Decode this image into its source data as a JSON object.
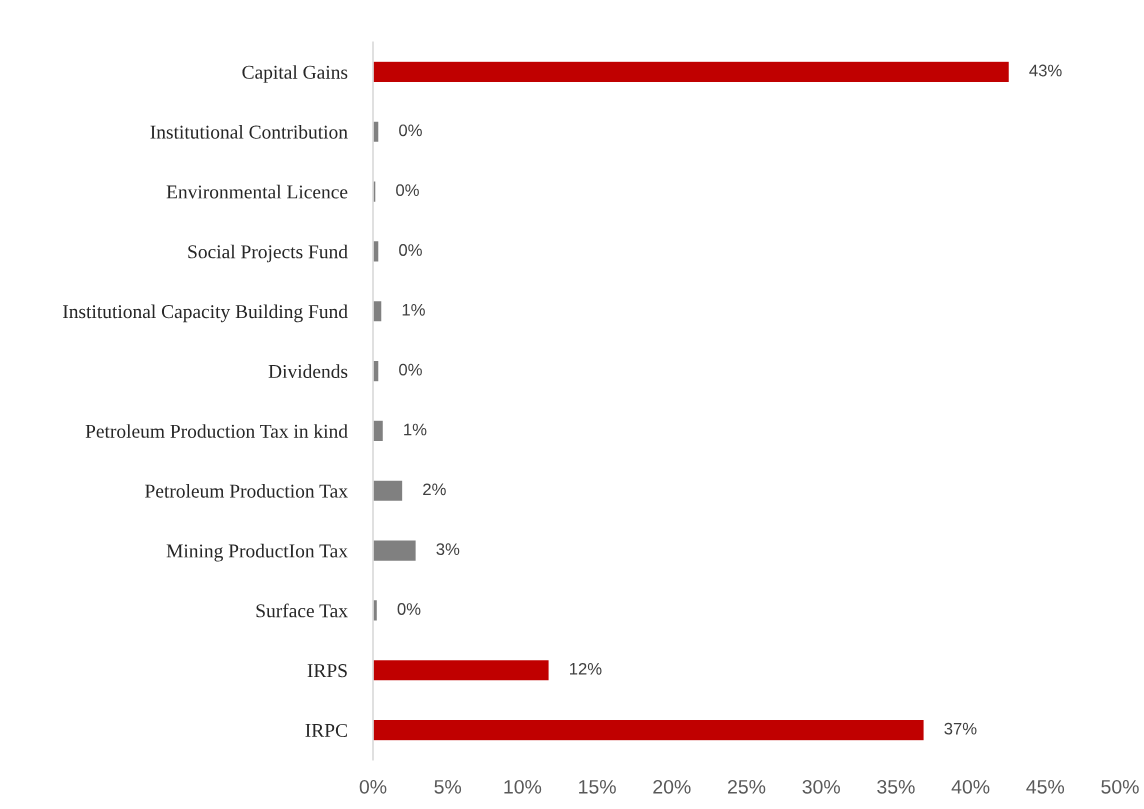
{
  "chart_data": {
    "type": "bar",
    "orientation": "horizontal",
    "categories": [
      "Capital Gains",
      "Institutional Contribution",
      "Environmental Licence",
      "Social Projects Fund",
      "Institutional Capacity Building Fund",
      "Dividends",
      "Petroleum Production Tax in kind",
      "Petroleum Production Tax",
      "Mining ProductIon Tax",
      "Surface Tax",
      "IRPS",
      "IRPC"
    ],
    "values": [
      42.6,
      0.4,
      0.2,
      0.4,
      0.6,
      0.4,
      0.7,
      2.0,
      2.9,
      0.3,
      11.8,
      36.9
    ],
    "value_labels": [
      "43%",
      "0%",
      "0%",
      "0%",
      "1%",
      "0%",
      "1%",
      "2%",
      "3%",
      "0%",
      "12%",
      "37%"
    ],
    "colors": [
      "#c00000",
      "#808080",
      "#808080",
      "#808080",
      "#808080",
      "#808080",
      "#808080",
      "#808080",
      "#808080",
      "#808080",
      "#c00000",
      "#c00000"
    ],
    "xlim": [
      0,
      50
    ],
    "xticks": [
      {
        "value": 0,
        "label": "0%"
      },
      {
        "value": 5,
        "label": "5%"
      },
      {
        "value": 10,
        "label": "10%"
      },
      {
        "value": 15,
        "label": "15%"
      },
      {
        "value": 20,
        "label": "20%"
      },
      {
        "value": 25,
        "label": "25%"
      },
      {
        "value": 30,
        "label": "30%"
      },
      {
        "value": 35,
        "label": "35%"
      },
      {
        "value": 40,
        "label": "40%"
      },
      {
        "value": 45,
        "label": "45%"
      },
      {
        "value": 50,
        "label": "50%"
      }
    ],
    "grid": false
  }
}
